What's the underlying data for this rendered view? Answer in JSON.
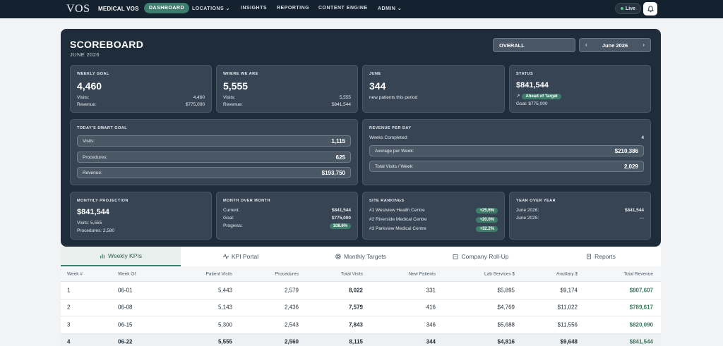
{
  "nav": {
    "logo": "VOS",
    "brand": "MEDICAL VOS",
    "items": [
      {
        "label": "DASHBOARD",
        "active": true
      },
      {
        "label": "LOCATIONS",
        "has_dropdown": true
      },
      {
        "label": "INSIGHTS"
      },
      {
        "label": "REPORTING"
      },
      {
        "label": "CONTENT ENGINE"
      },
      {
        "label": "ADMIN",
        "has_dropdown": true
      }
    ],
    "live_label": "Live"
  },
  "scoreboard": {
    "title": "SCOREBOARD",
    "subtitle": "JUNE 2026",
    "view_select": "OVERALL",
    "month": "June 2026",
    "weekly_goal": {
      "title": "WEEKLY GOAL",
      "value": "4,460",
      "visits_label": "Visits:",
      "visits": "4,460",
      "revenue_label": "Revenue:",
      "revenue": "$775,000"
    },
    "where_we_are": {
      "title": "WHERE WE ARE",
      "value": "5,555",
      "visits_label": "Visits:",
      "visits": "5,555",
      "revenue_label": "Revenue:",
      "revenue": "$841,544"
    },
    "june": {
      "title": "JUNE",
      "value": "344",
      "note": "new patients this period"
    },
    "status": {
      "title": "STATUS",
      "value": "$841,544",
      "badge": "Ahead of Target",
      "goal": "Goal: $775,000"
    },
    "smart_goal": {
      "title": "TODAY'S SMART GOAL",
      "rows": [
        {
          "label": "Visits:",
          "value": "1,115"
        },
        {
          "label": "Procedures:",
          "value": "625"
        },
        {
          "label": "Revenue:",
          "value": "$193,750"
        }
      ]
    },
    "revenue_per_day": {
      "title": "REVENUE PER DAY",
      "weeks_label": "Weeks Completed:",
      "weeks": "4",
      "rows": [
        {
          "label": "Average per Week:",
          "value": "$210,386"
        },
        {
          "label": "Total Visits / Week:",
          "value": "2,029"
        }
      ]
    },
    "monthly_projection": {
      "title": "MONTHLY PROJECTION",
      "value": "$841,544",
      "visits": "Visits: 5,555",
      "procedures": "Procedures: 2,580"
    },
    "month_over_month": {
      "title": "MONTH OVER MONTH",
      "current_label": "Current:",
      "current": "$841,544",
      "goal_label": "Goal:",
      "goal": "$775,000",
      "progress_label": "Progress:",
      "progress": "108.6%"
    },
    "site_rankings": {
      "title": "SITE RANKINGS",
      "sites": [
        {
          "name": "#1 Westview Health Centre",
          "change": "+25.6%"
        },
        {
          "name": "#2 Riverside Medical Centre",
          "change": "+20.0%"
        },
        {
          "name": "#3 Parkview Medical Centre",
          "change": "+32.2%"
        }
      ]
    },
    "year_over_year": {
      "title": "YEAR OVER YEAR",
      "rows": [
        {
          "label": "June 2026:",
          "value": "$841,544"
        },
        {
          "label": "June 2025:",
          "value": "—"
        }
      ]
    }
  },
  "tabs": [
    {
      "label": "Weekly KPIs",
      "icon": "bar-chart-icon",
      "active": true
    },
    {
      "label": "KPI Portal",
      "icon": "pulse-icon"
    },
    {
      "label": "Monthly Targets",
      "icon": "target-icon"
    },
    {
      "label": "Company Roll-Up",
      "icon": "building-icon"
    },
    {
      "label": "Reports",
      "icon": "document-icon"
    }
  ],
  "table": {
    "headers": [
      "Week #",
      "Week Of",
      "Patient Visits",
      "Procedures",
      "Total Visits",
      "New Patients",
      "Lab Services $",
      "Ancillary $",
      "Total Revenue"
    ],
    "rows": [
      [
        "1",
        "06-01",
        "5,443",
        "2,579",
        "8,022",
        "331",
        "$5,895",
        "$9,174",
        "$807,607"
      ],
      [
        "2",
        "06-08",
        "5,143",
        "2,436",
        "7,579",
        "416",
        "$4,769",
        "$11,022",
        "$789,617"
      ],
      [
        "3",
        "06-15",
        "5,300",
        "2,543",
        "7,843",
        "346",
        "$5,688",
        "$11,556",
        "$820,090"
      ],
      [
        "4",
        "06-22",
        "5,555",
        "2,560",
        "8,115",
        "344",
        "$4,816",
        "$9,648",
        "$841,544"
      ]
    ]
  },
  "colors": {
    "accent": "#3e7c6e",
    "nav_bg": "#14212e",
    "board_bg": "#1f2c3a",
    "card_bg": "#364453",
    "revenue_green": "#3a7a5f"
  }
}
